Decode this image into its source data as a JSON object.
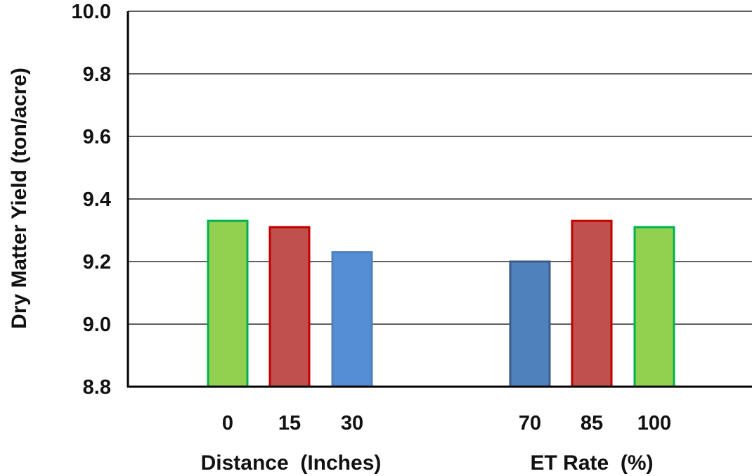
{
  "chart_data": {
    "type": "bar",
    "title": "",
    "ylabel": "Dry Matter Yield (ton/acre)",
    "ylim": [
      8.8,
      10.0
    ],
    "yticks": [
      "8.8",
      "9.0",
      "9.2",
      "9.4",
      "9.6",
      "9.8",
      "10.0"
    ],
    "grid": true,
    "groups": [
      {
        "label": "Distance  (Inches)",
        "categories": [
          "0",
          "15",
          "30"
        ],
        "values": [
          9.33,
          9.31,
          9.23
        ],
        "fill_colors": [
          "#92D050",
          "#C0504D",
          "#558ED5"
        ],
        "border_colors": [
          "#00B050",
          "#C00000",
          "#4F81BD"
        ]
      },
      {
        "label": "ET Rate  (%)",
        "categories": [
          "70",
          "85",
          "100"
        ],
        "values": [
          9.2,
          9.33,
          9.31
        ],
        "fill_colors": [
          "#4F81BD",
          "#C0504D",
          "#92D050"
        ],
        "border_colors": [
          "#385D8A",
          "#C00000",
          "#00B050"
        ]
      }
    ]
  }
}
